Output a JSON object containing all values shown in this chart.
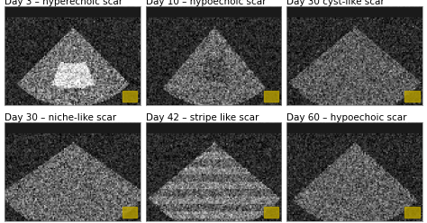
{
  "panels": [
    {
      "label": "Day 3 – hyperechoic scar",
      "row": 0,
      "col": 0
    },
    {
      "label": "Day 10 – hypoechoic scar",
      "row": 0,
      "col": 1
    },
    {
      "label": "Day 30 cyst-like scar",
      "row": 0,
      "col": 2
    },
    {
      "label": "Day 30 – niche-like scar",
      "row": 1,
      "col": 0
    },
    {
      "label": "Day 42 – stripe like scar",
      "row": 1,
      "col": 1
    },
    {
      "label": "Day 60 – hypoechoic scar",
      "row": 1,
      "col": 2
    }
  ],
  "bg_color": "#ffffff",
  "panel_bg": "#000000",
  "label_color": "#000000",
  "label_fontsize": 7.5,
  "border_color": "#888888",
  "figsize": [
    4.74,
    2.48
  ],
  "dpi": 100
}
